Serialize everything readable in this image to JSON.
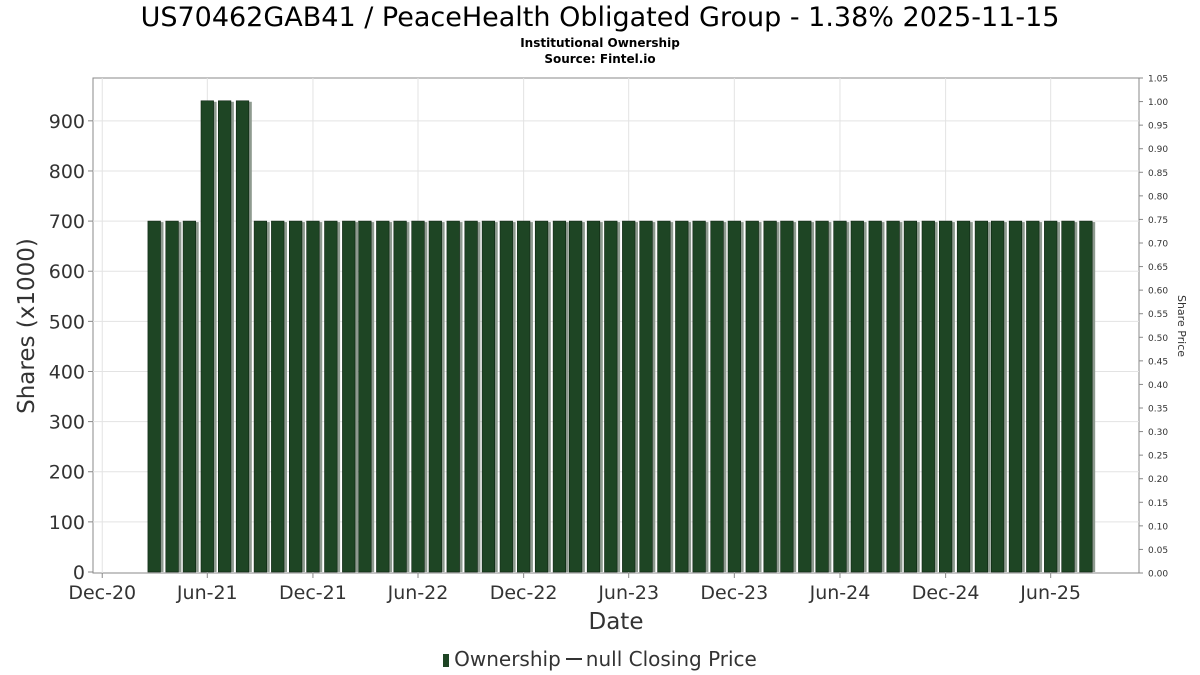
{
  "chart_data": {
    "type": "bar",
    "title": "US70462GAB41 / PeaceHealth Obligated Group - 1.38% 2025-11-15",
    "subtitle": "Institutional Ownership",
    "source": "Source: Fintel.io",
    "xlabel": "Date",
    "ylabel": "Shares (x1000)",
    "y2label": "Share Price",
    "x_tick_labels": [
      "Dec-20",
      "Jun-21",
      "Dec-21",
      "Jun-22",
      "Dec-22",
      "Jun-23",
      "Dec-23",
      "Jun-24",
      "Dec-24",
      "Jun-25"
    ],
    "x_range": [
      "2020-11-15",
      "2025-11-01"
    ],
    "ylim": [
      0,
      980
    ],
    "y_ticks": [
      0,
      100,
      200,
      300,
      400,
      500,
      600,
      700,
      800,
      900
    ],
    "y2lim": [
      0,
      1.05
    ],
    "y2_ticks": [
      "0.00",
      "0.05",
      "0.10",
      "0.15",
      "0.20",
      "0.25",
      "0.30",
      "0.35",
      "0.40",
      "0.45",
      "0.50",
      "0.55",
      "0.60",
      "0.65",
      "0.70",
      "0.75",
      "0.80",
      "0.85",
      "0.90",
      "0.95",
      "1.00",
      "1.05"
    ],
    "grid": true,
    "legend_position": "bottom-center",
    "series": [
      {
        "name": "Ownership",
        "color": "#1e4524",
        "x": [
          "2021-03-01",
          "2021-04-01",
          "2021-05-01",
          "2021-06-01",
          "2021-07-01",
          "2021-08-01",
          "2021-09-01",
          "2021-10-01",
          "2021-11-01",
          "2021-12-01",
          "2022-01-01",
          "2022-02-01",
          "2022-03-01",
          "2022-04-01",
          "2022-05-01",
          "2022-06-01",
          "2022-07-01",
          "2022-08-01",
          "2022-09-01",
          "2022-10-01",
          "2022-11-01",
          "2022-12-01",
          "2023-01-01",
          "2023-02-01",
          "2023-03-01",
          "2023-04-01",
          "2023-05-01",
          "2023-06-01",
          "2023-07-01",
          "2023-08-01",
          "2023-09-01",
          "2023-10-01",
          "2023-11-01",
          "2023-12-01",
          "2024-01-01",
          "2024-02-01",
          "2024-03-01",
          "2024-04-01",
          "2024-05-01",
          "2024-06-01",
          "2024-07-01",
          "2024-08-01",
          "2024-09-01",
          "2024-10-01",
          "2024-11-01",
          "2024-12-01",
          "2025-01-01",
          "2025-02-01",
          "2025-03-01",
          "2025-04-01",
          "2025-05-01",
          "2025-06-01",
          "2025-07-01",
          "2025-08-01"
        ],
        "values": [
          700,
          700,
          700,
          940,
          940,
          940,
          700,
          700,
          700,
          700,
          700,
          700,
          700,
          700,
          700,
          700,
          700,
          700,
          700,
          700,
          700,
          700,
          700,
          700,
          700,
          700,
          700,
          700,
          700,
          700,
          700,
          700,
          700,
          700,
          700,
          700,
          700,
          700,
          700,
          700,
          700,
          700,
          700,
          700,
          700,
          700,
          700,
          700,
          700,
          700,
          700,
          700,
          700,
          700
        ]
      },
      {
        "name": "null Closing Price",
        "color": "#333333",
        "values": []
      }
    ]
  }
}
